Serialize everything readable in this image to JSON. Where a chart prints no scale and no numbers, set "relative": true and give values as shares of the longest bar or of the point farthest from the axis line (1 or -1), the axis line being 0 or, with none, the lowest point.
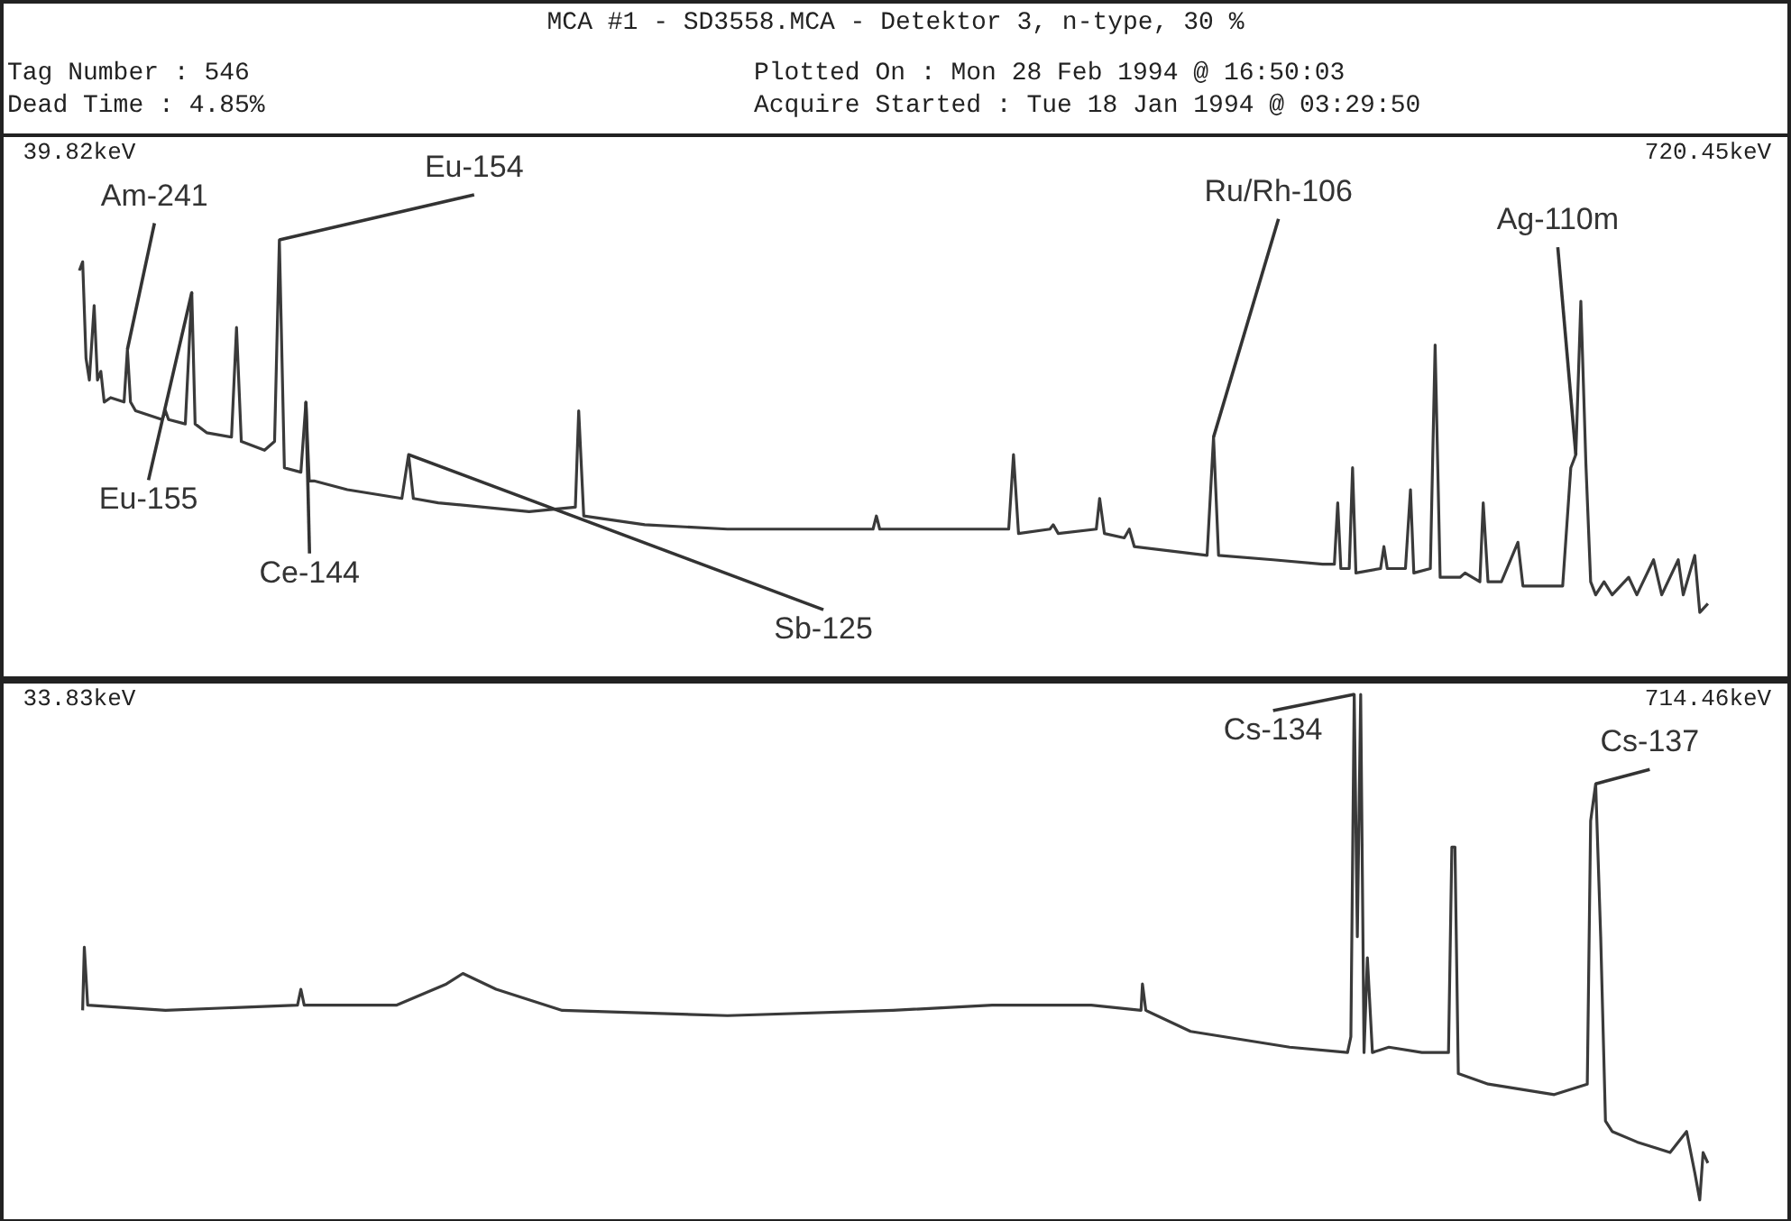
{
  "chart_data": [
    {
      "type": "line",
      "title": "MCA #1 - SD3558.MCA - Detektor 3, n-type, 30 %",
      "relative": true,
      "grid": false,
      "xlim": [
        39.82,
        720.45
      ],
      "xticks": [
        {
          "value": 39.82,
          "label": "39.82keV"
        },
        {
          "value": 720.45,
          "label": "720.45keV"
        }
      ],
      "annotations": [
        "Tag Number : 546",
        "Dead Time : 4.85%",
        "Plotted On : Mon 28 Feb 1994 @ 16:50:03",
        "Acquire Started : Tue 18 Jan 1994 @ 03:29:50",
        {
          "text": "Am-241",
          "x": 59.9,
          "y": 0.75
        },
        {
          "text": "Eu-154",
          "x": 123.4,
          "y": 1
        },
        {
          "text": "Eu-155",
          "x": 86.8,
          "y": 0.88
        },
        {
          "text": "Ce-144",
          "x": 134.5,
          "y": 0.63
        },
        {
          "text": "Sb-125",
          "x": 177.4,
          "y": 0.51
        },
        {
          "text": "Ru/Rh-106",
          "x": 513.8,
          "y": 0.55
        },
        {
          "text": "Ag-110m",
          "x": 665.2,
          "y": 0.51
        }
      ],
      "series": [
        {
          "color": "#3a3a3a",
          "x": [
            39.82,
            41.2,
            42.6,
            44.0,
            46.0,
            47.4,
            48.8,
            50.2,
            52.9,
            58.5,
            59.9,
            61.2,
            63.3,
            74.4,
            75.8,
            77.1,
            84.1,
            86.8,
            88.2,
            93.0,
            103.4,
            105.5,
            107.5,
            117.2,
            121.4,
            123.4,
            125.5,
            132.4,
            134.5,
            135.9,
            137.9,
            151.8,
            174.6,
            177.4,
            179.4,
            189.8,
            227.8,
            247.1,
            248.5,
            250.6,
            276.1,
            310.7,
            345.2,
            371.5,
            372.9,
            374.3,
            393.6,
            400.5,
            410.9,
            428.2,
            430.2,
            432.3,
            445.4,
            446.8,
            448.9,
            464.8,
            466.2,
            468.2,
            476.5,
            478.6,
            480.7,
            511.1,
            513.8,
            515.9,
            538.7,
            559.4,
            564.3,
            565.7,
            567.0,
            570.5,
            571.9,
            573.3,
            583.6,
            585.0,
            586.4,
            594.0,
            596.1,
            597.5,
            604.4,
            606.4,
            608.5,
            616.8,
            618.9,
            625.1,
            626.5,
            628.5,
            634.1,
            641.0,
            643.1,
            659.7,
            663.1,
            665.2,
            667.3,
            669.4,
            671.4,
            673.5,
            677.0,
            680.4,
            687.3,
            690.7,
            697.7,
            701.1,
            708.0,
            710.1,
            714.9,
            717.0,
            720.4
          ],
          "values": [
            0.93,
            0.95,
            0.73,
            0.68,
            0.85,
            0.68,
            0.7,
            0.63,
            0.64,
            0.63,
            0.75,
            0.63,
            0.61,
            0.59,
            0.61,
            0.59,
            0.58,
            0.88,
            0.58,
            0.56,
            0.55,
            0.8,
            0.54,
            0.52,
            0.54,
            1,
            0.48,
            0.47,
            0.63,
            0.45,
            0.45,
            0.43,
            0.41,
            0.51,
            0.41,
            0.4,
            0.38,
            0.39,
            0.61,
            0.37,
            0.35,
            0.34,
            0.34,
            0.34,
            0.37,
            0.34,
            0.34,
            0.34,
            0.34,
            0.34,
            0.51,
            0.33,
            0.34,
            0.35,
            0.33,
            0.34,
            0.41,
            0.33,
            0.32,
            0.34,
            0.3,
            0.28,
            0.55,
            0.28,
            0.27,
            0.26,
            0.26,
            0.4,
            0.25,
            0.25,
            0.48,
            0.24,
            0.25,
            0.3,
            0.25,
            0.25,
            0.43,
            0.24,
            0.25,
            0.76,
            0.23,
            0.23,
            0.24,
            0.22,
            0.4,
            0.22,
            0.22,
            0.31,
            0.21,
            0.21,
            0.48,
            0.51,
            0.86,
            0.49,
            0.22,
            0.19,
            0.22,
            0.19,
            0.23,
            0.19,
            0.27,
            0.19,
            0.27,
            0.19,
            0.28,
            0.15,
            0.17
          ]
        }
      ]
    },
    {
      "type": "line",
      "relative": true,
      "grid": false,
      "xlim": [
        33.83,
        714.46
      ],
      "xticks": [
        {
          "value": 33.83,
          "label": "33.83keV"
        },
        {
          "value": 714.46,
          "label": "714.46keV"
        }
      ],
      "annotations": [
        {
          "text": "Cs-134",
          "x": 566.6,
          "y": 1
        },
        {
          "text": "Cs-137",
          "x": 667.5,
          "y": 0.83
        }
      ],
      "series": [
        {
          "color": "#3a3a3a",
          "x": [
            35.2,
            35.9,
            37.3,
            69.8,
            125.0,
            126.4,
            127.8,
            166.5,
            187.2,
            194.1,
            208.0,
            235.6,
            304.7,
            373.8,
            415.3,
            456.7,
            477.5,
            478.1,
            479.5,
            498.2,
            539.6,
            563.8,
            565.2,
            566.6,
            567.9,
            569.3,
            570.7,
            572.1,
            574.2,
            581.1,
            594.9,
            606.0,
            607.4,
            608.7,
            610.1,
            622.6,
            650.2,
            664.0,
            665.4,
            667.5,
            669.6,
            671.6,
            674.4,
            684.8,
            698.6,
            705.5,
            709.0,
            711.0,
            712.4,
            714.4
          ],
          "values": [
            0.4,
            0.52,
            0.41,
            0.4,
            0.41,
            0.44,
            0.41,
            0.41,
            0.45,
            0.47,
            0.44,
            0.4,
            0.39,
            0.4,
            0.41,
            0.41,
            0.4,
            0.45,
            0.4,
            0.36,
            0.33,
            0.32,
            0.35,
            1,
            0.54,
            1,
            0.32,
            0.5,
            0.32,
            0.33,
            0.32,
            0.32,
            0.71,
            0.71,
            0.28,
            0.26,
            0.24,
            0.26,
            0.76,
            0.83,
            0.54,
            0.19,
            0.17,
            0.15,
            0.13,
            0.17,
            0.09,
            0.04,
            0.13,
            0.11
          ]
        }
      ]
    }
  ]
}
